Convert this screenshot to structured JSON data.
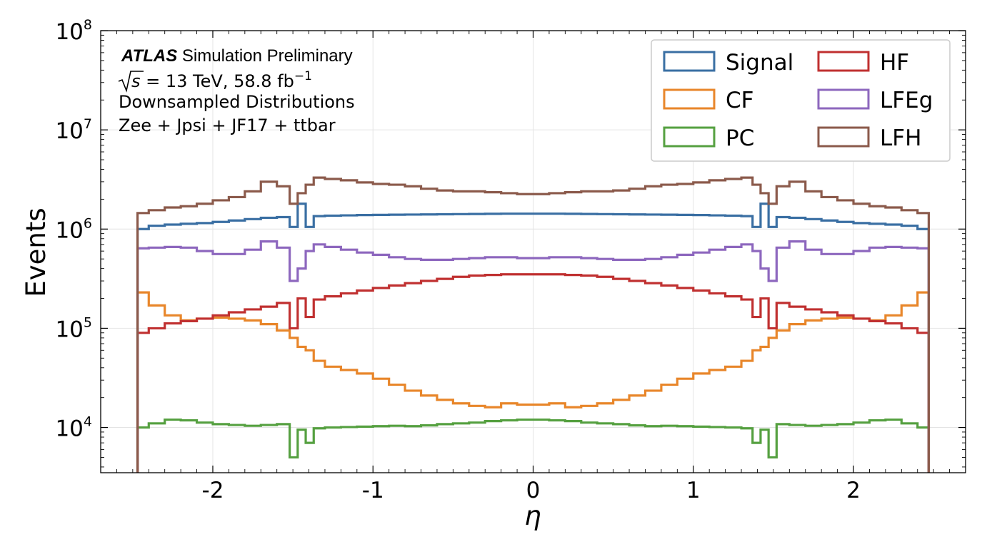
{
  "chart_data": {
    "type": "line",
    "drawstyle": "step",
    "xlabel": "η",
    "ylabel": "Events",
    "xlim": [
      -2.7,
      2.7
    ],
    "ylim": [
      3500,
      100000000
    ],
    "yscale": "log",
    "grid": true,
    "legend_position": "top-right",
    "x_ticks": [
      "-2",
      "-1",
      "0",
      "1",
      "2"
    ],
    "y_ticks": [
      {
        "value": 10000,
        "base": "10",
        "exp": "4"
      },
      {
        "value": 100000,
        "base": "10",
        "exp": "5"
      },
      {
        "value": 1000000,
        "base": "10",
        "exp": "6"
      },
      {
        "value": 10000000,
        "base": "10",
        "exp": "7"
      },
      {
        "value": 100000000,
        "base": "10",
        "exp": "8"
      }
    ],
    "annotation": {
      "experiment": "ATLAS",
      "status": " Simulation Preliminary",
      "sqrt_s": "s",
      "energy_lumi": " = 13 TeV,  58.8 fb",
      "lumi_exp": "−1",
      "line3": "Downsampled Distributions",
      "line4": "Zee + Jpsi + JF17 + ttbar"
    },
    "bin_edges_abs_eta": [
      0,
      0.1,
      0.2,
      0.3,
      0.4,
      0.5,
      0.6,
      0.7,
      0.8,
      0.9,
      1.0,
      1.1,
      1.2,
      1.3,
      1.37,
      1.42,
      1.47,
      1.52,
      1.6,
      1.7,
      1.8,
      1.9,
      2.0,
      2.1,
      2.2,
      2.3,
      2.4,
      2.47
    ],
    "series": [
      {
        "name": "Signal",
        "color": "#3a6fa3",
        "values_mirrored_abs_eta": [
          1430000,
          1430000,
          1425000,
          1420000,
          1415000,
          1410000,
          1405000,
          1400000,
          1395000,
          1390000,
          1385000,
          1375000,
          1365000,
          1350000,
          1050000,
          1800000,
          1050000,
          1320000,
          1300000,
          1260000,
          1220000,
          1180000,
          1150000,
          1130000,
          1110000,
          1080000,
          1000000
        ]
      },
      {
        "name": "CF",
        "color": "#e8862a",
        "values_mirrored_abs_eta": [
          17000,
          17500,
          16000,
          16500,
          17500,
          19000,
          21000,
          23500,
          27000,
          31000,
          35000,
          38000,
          41000,
          47000,
          60000,
          65000,
          80000,
          95000,
          110000,
          120000,
          125000,
          128000,
          125000,
          120000,
          135000,
          170000,
          230000
        ]
      },
      {
        "name": "PC",
        "color": "#55a040",
        "values_mirrored_abs_eta": [
          12000,
          11800,
          11600,
          11200,
          11000,
          10800,
          10500,
          10300,
          10400,
          10300,
          10200,
          10100,
          10000,
          9800,
          7000,
          9500,
          5000,
          10800,
          10600,
          10400,
          10600,
          10800,
          11200,
          11800,
          12000,
          11000,
          10000
        ]
      },
      {
        "name": "HF",
        "color": "#c03030",
        "values_mirrored_abs_eta": [
          350000,
          350000,
          345000,
          340000,
          330000,
          315000,
          300000,
          285000,
          270000,
          255000,
          240000,
          225000,
          210000,
          195000,
          130000,
          200000,
          100000,
          180000,
          165000,
          155000,
          145000,
          135000,
          125000,
          118000,
          112000,
          100000,
          90000
        ]
      },
      {
        "name": "LFEg",
        "color": "#8d67be",
        "values_mirrored_abs_eta": [
          510000,
          520000,
          520000,
          510000,
          500000,
          490000,
          490000,
          500000,
          520000,
          550000,
          580000,
          620000,
          660000,
          700000,
          600000,
          400000,
          300000,
          650000,
          750000,
          620000,
          560000,
          560000,
          600000,
          650000,
          660000,
          650000,
          640000
        ]
      },
      {
        "name": "LFH",
        "color": "#8b5a4b",
        "values_mirrored_abs_eta": [
          2250000,
          2300000,
          2350000,
          2400000,
          2400000,
          2450000,
          2550000,
          2700000,
          2800000,
          2850000,
          2950000,
          3100000,
          3200000,
          3300000,
          2800000,
          2300000,
          1800000,
          2700000,
          3000000,
          2400000,
          2100000,
          1950000,
          1800000,
          1700000,
          1650000,
          1550000,
          1450000
        ]
      }
    ]
  }
}
